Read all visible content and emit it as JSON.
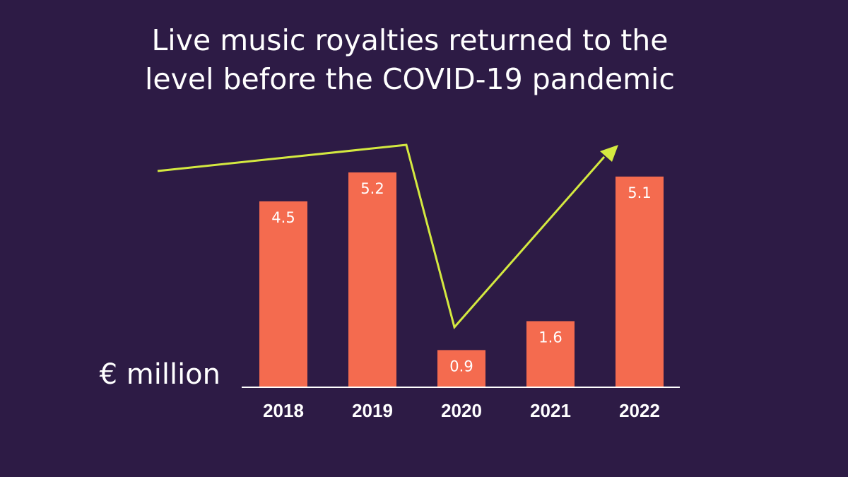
{
  "title_lines": [
    "Live music royalties returned to the",
    "level before the COVID-19 pandemic"
  ],
  "chart_data": {
    "type": "bar",
    "title": "Live music royalties returned to the level before the COVID-19 pandemic",
    "ylabel": "€ million",
    "categories": [
      "2018",
      "2019",
      "2020",
      "2021",
      "2022"
    ],
    "values": [
      4.5,
      5.2,
      0.9,
      1.6,
      5.1
    ],
    "data_labels": [
      "4.5",
      "5.2",
      "0.9",
      "1.6",
      "5.1"
    ],
    "ylim": [
      0,
      5.2
    ],
    "grid": false,
    "legend": "none",
    "colors": {
      "background": "#2d1b45",
      "bar": "#f46b4f",
      "trend_arrow": "#d4e940",
      "text": "#ffffff",
      "axis": "#ffffff"
    }
  }
}
